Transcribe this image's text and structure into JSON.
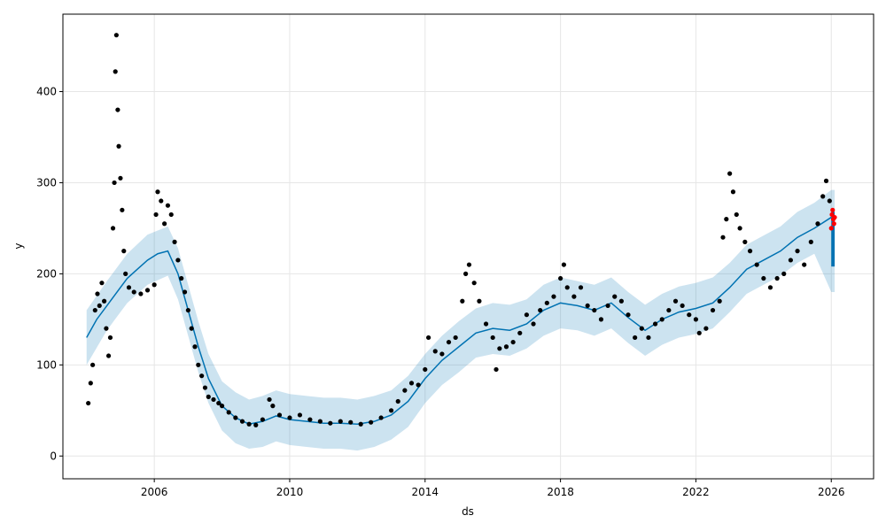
{
  "chart_data": {
    "type": "scatter",
    "title": "",
    "xlabel": "ds",
    "ylabel": "y",
    "xlim": [
      2003.3,
      2027.25
    ],
    "ylim": [
      -25,
      485
    ],
    "grid": true,
    "x_ticks": [
      2006,
      2010,
      2014,
      2018,
      2022,
      2026
    ],
    "x_tick_labels": [
      "2006",
      "2010",
      "2014",
      "2018",
      "2022",
      "2026"
    ],
    "y_ticks": [
      0,
      100,
      200,
      300,
      400
    ],
    "y_tick_labels": [
      "0",
      "100",
      "200",
      "300",
      "400"
    ],
    "colors": {
      "observed": "#000000",
      "forecast_line": "#0072B2",
      "uncertainty_band": "#0072B2",
      "actual_recent": "#FF0000",
      "grid": "#e6e6e6"
    },
    "series": [
      {
        "kind": "observed-points",
        "points": [
          [
            2004.05,
            58
          ],
          [
            2004.12,
            80
          ],
          [
            2004.18,
            100
          ],
          [
            2004.25,
            160
          ],
          [
            2004.32,
            178
          ],
          [
            2004.38,
            165
          ],
          [
            2004.45,
            190
          ],
          [
            2004.52,
            170
          ],
          [
            2004.58,
            140
          ],
          [
            2004.65,
            110
          ],
          [
            2004.7,
            130
          ],
          [
            2004.78,
            250
          ],
          [
            2004.82,
            300
          ],
          [
            2004.85,
            422
          ],
          [
            2004.88,
            462
          ],
          [
            2004.92,
            380
          ],
          [
            2004.95,
            340
          ],
          [
            2005.0,
            305
          ],
          [
            2005.05,
            270
          ],
          [
            2005.1,
            225
          ],
          [
            2005.15,
            200
          ],
          [
            2005.25,
            185
          ],
          [
            2005.4,
            180
          ],
          [
            2005.6,
            178
          ],
          [
            2005.8,
            182
          ],
          [
            2006.0,
            188
          ],
          [
            2006.05,
            265
          ],
          [
            2006.1,
            290
          ],
          [
            2006.2,
            280
          ],
          [
            2006.3,
            255
          ],
          [
            2006.4,
            275
          ],
          [
            2006.5,
            265
          ],
          [
            2006.6,
            235
          ],
          [
            2006.7,
            215
          ],
          [
            2006.8,
            195
          ],
          [
            2006.9,
            180
          ],
          [
            2007.0,
            160
          ],
          [
            2007.1,
            140
          ],
          [
            2007.2,
            120
          ],
          [
            2007.3,
            100
          ],
          [
            2007.4,
            88
          ],
          [
            2007.5,
            75
          ],
          [
            2007.6,
            65
          ],
          [
            2007.75,
            62
          ],
          [
            2007.9,
            58
          ],
          [
            2008.0,
            55
          ],
          [
            2008.2,
            48
          ],
          [
            2008.4,
            42
          ],
          [
            2008.6,
            38
          ],
          [
            2008.8,
            35
          ],
          [
            2009.0,
            34
          ],
          [
            2009.2,
            40
          ],
          [
            2009.4,
            62
          ],
          [
            2009.5,
            55
          ],
          [
            2009.7,
            45
          ],
          [
            2010.0,
            42
          ],
          [
            2010.3,
            45
          ],
          [
            2010.6,
            40
          ],
          [
            2010.9,
            38
          ],
          [
            2011.2,
            36
          ],
          [
            2011.5,
            38
          ],
          [
            2011.8,
            37
          ],
          [
            2012.1,
            35
          ],
          [
            2012.4,
            37
          ],
          [
            2012.7,
            42
          ],
          [
            2013.0,
            50
          ],
          [
            2013.2,
            60
          ],
          [
            2013.4,
            72
          ],
          [
            2013.6,
            80
          ],
          [
            2013.8,
            78
          ],
          [
            2014.0,
            95
          ],
          [
            2014.1,
            130
          ],
          [
            2014.3,
            115
          ],
          [
            2014.5,
            112
          ],
          [
            2014.7,
            125
          ],
          [
            2014.9,
            130
          ],
          [
            2015.1,
            170
          ],
          [
            2015.2,
            200
          ],
          [
            2015.3,
            210
          ],
          [
            2015.45,
            190
          ],
          [
            2015.6,
            170
          ],
          [
            2015.8,
            145
          ],
          [
            2016.0,
            130
          ],
          [
            2016.1,
            95
          ],
          [
            2016.2,
            118
          ],
          [
            2016.4,
            120
          ],
          [
            2016.6,
            125
          ],
          [
            2016.8,
            135
          ],
          [
            2017.0,
            155
          ],
          [
            2017.2,
            145
          ],
          [
            2017.4,
            160
          ],
          [
            2017.6,
            168
          ],
          [
            2017.8,
            175
          ],
          [
            2018.0,
            195
          ],
          [
            2018.1,
            210
          ],
          [
            2018.2,
            185
          ],
          [
            2018.4,
            175
          ],
          [
            2018.6,
            185
          ],
          [
            2018.8,
            165
          ],
          [
            2019.0,
            160
          ],
          [
            2019.2,
            150
          ],
          [
            2019.4,
            165
          ],
          [
            2019.6,
            175
          ],
          [
            2019.8,
            170
          ],
          [
            2020.0,
            155
          ],
          [
            2020.2,
            130
          ],
          [
            2020.4,
            140
          ],
          [
            2020.6,
            130
          ],
          [
            2020.8,
            145
          ],
          [
            2021.0,
            150
          ],
          [
            2021.2,
            160
          ],
          [
            2021.4,
            170
          ],
          [
            2021.6,
            165
          ],
          [
            2021.8,
            155
          ],
          [
            2022.0,
            150
          ],
          [
            2022.1,
            135
          ],
          [
            2022.3,
            140
          ],
          [
            2022.5,
            160
          ],
          [
            2022.7,
            170
          ],
          [
            2022.8,
            240
          ],
          [
            2022.9,
            260
          ],
          [
            2023.0,
            310
          ],
          [
            2023.1,
            290
          ],
          [
            2023.2,
            265
          ],
          [
            2023.3,
            250
          ],
          [
            2023.45,
            235
          ],
          [
            2023.6,
            225
          ],
          [
            2023.8,
            210
          ],
          [
            2024.0,
            195
          ],
          [
            2024.2,
            185
          ],
          [
            2024.4,
            195
          ],
          [
            2024.6,
            200
          ],
          [
            2024.8,
            215
          ],
          [
            2025.0,
            225
          ],
          [
            2025.2,
            210
          ],
          [
            2025.4,
            235
          ],
          [
            2025.6,
            255
          ],
          [
            2025.75,
            285
          ],
          [
            2025.85,
            302
          ],
          [
            2025.95,
            280
          ]
        ]
      },
      {
        "kind": "forecast-line",
        "points": [
          [
            2004.0,
            130
          ],
          [
            2004.3,
            150
          ],
          [
            2004.6,
            165
          ],
          [
            2004.9,
            180
          ],
          [
            2005.2,
            195
          ],
          [
            2005.5,
            205
          ],
          [
            2005.8,
            215
          ],
          [
            2006.1,
            222
          ],
          [
            2006.4,
            225
          ],
          [
            2006.7,
            200
          ],
          [
            2007.0,
            160
          ],
          [
            2007.3,
            120
          ],
          [
            2007.6,
            85
          ],
          [
            2008.0,
            55
          ],
          [
            2008.4,
            42
          ],
          [
            2008.8,
            35
          ],
          [
            2009.2,
            38
          ],
          [
            2009.6,
            44
          ],
          [
            2010.0,
            40
          ],
          [
            2010.5,
            38
          ],
          [
            2011.0,
            36
          ],
          [
            2011.5,
            36
          ],
          [
            2012.0,
            35
          ],
          [
            2012.5,
            38
          ],
          [
            2013.0,
            45
          ],
          [
            2013.5,
            60
          ],
          [
            2014.0,
            85
          ],
          [
            2014.5,
            105
          ],
          [
            2015.0,
            120
          ],
          [
            2015.5,
            135
          ],
          [
            2016.0,
            140
          ],
          [
            2016.5,
            138
          ],
          [
            2017.0,
            145
          ],
          [
            2017.5,
            160
          ],
          [
            2018.0,
            168
          ],
          [
            2018.5,
            165
          ],
          [
            2019.0,
            160
          ],
          [
            2019.5,
            168
          ],
          [
            2020.0,
            152
          ],
          [
            2020.5,
            138
          ],
          [
            2021.0,
            150
          ],
          [
            2021.5,
            158
          ],
          [
            2022.0,
            162
          ],
          [
            2022.5,
            168
          ],
          [
            2023.0,
            185
          ],
          [
            2023.5,
            205
          ],
          [
            2024.0,
            215
          ],
          [
            2024.5,
            225
          ],
          [
            2025.0,
            240
          ],
          [
            2025.5,
            250
          ],
          [
            2026.0,
            262
          ]
        ]
      },
      {
        "kind": "uncertainty-band",
        "upper": [
          [
            2004.0,
            160
          ],
          [
            2004.6,
            192
          ],
          [
            2005.2,
            222
          ],
          [
            2005.8,
            243
          ],
          [
            2006.4,
            252
          ],
          [
            2006.7,
            228
          ],
          [
            2007.0,
            188
          ],
          [
            2007.3,
            148
          ],
          [
            2007.6,
            112
          ],
          [
            2008.0,
            82
          ],
          [
            2008.4,
            70
          ],
          [
            2008.8,
            62
          ],
          [
            2009.2,
            66
          ],
          [
            2009.6,
            72
          ],
          [
            2010.0,
            68
          ],
          [
            2010.5,
            66
          ],
          [
            2011.0,
            64
          ],
          [
            2011.5,
            64
          ],
          [
            2012.0,
            62
          ],
          [
            2012.5,
            66
          ],
          [
            2013.0,
            72
          ],
          [
            2013.5,
            88
          ],
          [
            2014.0,
            112
          ],
          [
            2014.5,
            132
          ],
          [
            2015.0,
            148
          ],
          [
            2015.5,
            162
          ],
          [
            2016.0,
            168
          ],
          [
            2016.5,
            166
          ],
          [
            2017.0,
            172
          ],
          [
            2017.5,
            188
          ],
          [
            2018.0,
            196
          ],
          [
            2018.5,
            192
          ],
          [
            2019.0,
            188
          ],
          [
            2019.5,
            196
          ],
          [
            2020.0,
            180
          ],
          [
            2020.5,
            166
          ],
          [
            2021.0,
            178
          ],
          [
            2021.5,
            186
          ],
          [
            2022.0,
            190
          ],
          [
            2022.5,
            196
          ],
          [
            2023.0,
            212
          ],
          [
            2023.5,
            232
          ],
          [
            2024.0,
            242
          ],
          [
            2024.5,
            252
          ],
          [
            2025.0,
            268
          ],
          [
            2025.5,
            278
          ],
          [
            2026.0,
            292
          ],
          [
            2026.1,
            292
          ]
        ],
        "lower": [
          [
            2004.0,
            100
          ],
          [
            2004.6,
            138
          ],
          [
            2005.2,
            168
          ],
          [
            2005.8,
            188
          ],
          [
            2006.4,
            198
          ],
          [
            2006.7,
            172
          ],
          [
            2007.0,
            132
          ],
          [
            2007.3,
            92
          ],
          [
            2007.6,
            58
          ],
          [
            2008.0,
            28
          ],
          [
            2008.4,
            14
          ],
          [
            2008.8,
            8
          ],
          [
            2009.2,
            10
          ],
          [
            2009.6,
            16
          ],
          [
            2010.0,
            12
          ],
          [
            2010.5,
            10
          ],
          [
            2011.0,
            8
          ],
          [
            2011.5,
            8
          ],
          [
            2012.0,
            6
          ],
          [
            2012.5,
            10
          ],
          [
            2013.0,
            18
          ],
          [
            2013.5,
            32
          ],
          [
            2014.0,
            58
          ],
          [
            2014.5,
            78
          ],
          [
            2015.0,
            92
          ],
          [
            2015.5,
            108
          ],
          [
            2016.0,
            112
          ],
          [
            2016.5,
            110
          ],
          [
            2017.0,
            118
          ],
          [
            2017.5,
            132
          ],
          [
            2018.0,
            140
          ],
          [
            2018.5,
            138
          ],
          [
            2019.0,
            132
          ],
          [
            2019.5,
            140
          ],
          [
            2020.0,
            124
          ],
          [
            2020.5,
            110
          ],
          [
            2021.0,
            122
          ],
          [
            2021.5,
            130
          ],
          [
            2022.0,
            134
          ],
          [
            2022.5,
            140
          ],
          [
            2023.0,
            158
          ],
          [
            2023.5,
            178
          ],
          [
            2024.0,
            188
          ],
          [
            2024.5,
            198
          ],
          [
            2025.0,
            212
          ],
          [
            2025.5,
            222
          ],
          [
            2026.0,
            180
          ],
          [
            2026.1,
            180
          ]
        ]
      },
      {
        "kind": "forecast-vertical-band",
        "x": [
          2026.0,
          2026.1
        ],
        "y_range": [
          208,
          268
        ]
      },
      {
        "kind": "recent-actual-points",
        "points": [
          [
            2026.0,
            250
          ],
          [
            2026.02,
            265
          ],
          [
            2026.04,
            270
          ],
          [
            2026.06,
            260
          ],
          [
            2026.08,
            255
          ],
          [
            2026.1,
            262
          ]
        ]
      }
    ]
  }
}
